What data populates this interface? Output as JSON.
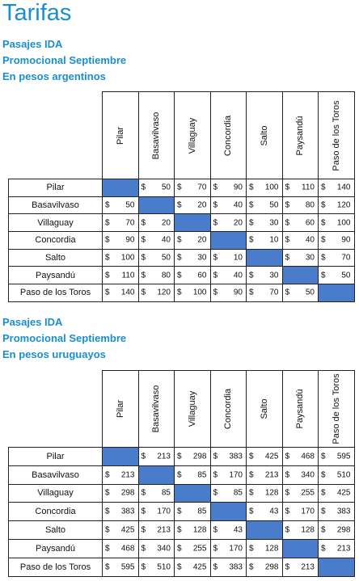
{
  "title": "Tarifas",
  "section_ars": {
    "lines": [
      "Pasajes IDA",
      "Promocional Septiembre",
      "En pesos argentinos"
    ]
  },
  "section_uyu": {
    "lines": [
      "Pasajes IDA",
      "Promocional Septiembre",
      "En pesos uruguayos"
    ]
  },
  "currency_symbol": "$",
  "cities": [
    "Pilar",
    "Basavilvaso",
    "Villaguay",
    "Concordia",
    "Salto",
    "Paysandú",
    "Paso de los Toros"
  ],
  "diag_color": "#4a7ccc",
  "accent_color": "#1a8fd0",
  "table_ars": [
    [
      null,
      "50",
      "70",
      "90",
      "100",
      "110",
      "140"
    ],
    [
      "50",
      null,
      "20",
      "40",
      "50",
      "80",
      "120"
    ],
    [
      "70",
      "20",
      null,
      "20",
      "30",
      "60",
      "100"
    ],
    [
      "90",
      "40",
      "20",
      null,
      "10",
      "40",
      "90"
    ],
    [
      "100",
      "50",
      "30",
      "10",
      null,
      "30",
      "70"
    ],
    [
      "110",
      "80",
      "60",
      "40",
      "30",
      null,
      "50"
    ],
    [
      "140",
      "120",
      "100",
      "90",
      "70",
      "50",
      null
    ]
  ],
  "table_uyu": [
    [
      null,
      "213",
      "298",
      "383",
      "425",
      "468",
      "595"
    ],
    [
      "213",
      null,
      "85",
      "170",
      "213",
      "340",
      "510"
    ],
    [
      "298",
      "85",
      null,
      "85",
      "128",
      "255",
      "425"
    ],
    [
      "383",
      "170",
      "85",
      null,
      "43",
      "170",
      "383"
    ],
    [
      "425",
      "213",
      "128",
      "43",
      null,
      "128",
      "298"
    ],
    [
      "468",
      "340",
      "255",
      "170",
      "128",
      null,
      "213"
    ],
    [
      "595",
      "510",
      "425",
      "383",
      "298",
      "213",
      null
    ]
  ]
}
